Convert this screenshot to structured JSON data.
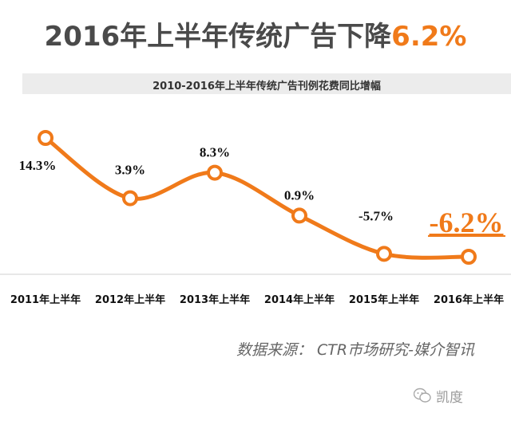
{
  "header": {
    "title_main": "2016年上半年传统广告下降",
    "title_highlight": "6.2%",
    "subtitle": "2010-2016年上半年传统广告刊例花费同比增幅"
  },
  "footer": {
    "source": "数据来源： CTR市场研究-媒介智讯",
    "watermark": "凯度"
  },
  "colors": {
    "line": "#f07a1a",
    "highlight": "#f07a1a",
    "axis": "#d0d0d0"
  },
  "chart_data": {
    "type": "line",
    "title": "2010-2016年上半年传统广告刊例花费同比增幅",
    "categories": [
      "2011年上半年",
      "2012年上半年",
      "2013年上半年",
      "2014年上半年",
      "2015年上半年",
      "2016年上半年"
    ],
    "values": [
      14.3,
      3.9,
      8.3,
      0.9,
      -5.7,
      -6.2
    ],
    "labels": [
      "14.3%",
      "3.9%",
      "8.3%",
      "0.9%",
      "-5.7%",
      "-6.2%"
    ],
    "highlight_index": 5,
    "xlabel": "",
    "ylabel": "",
    "ylim": [
      -8,
      16
    ],
    "grid": false,
    "legend": "none"
  }
}
